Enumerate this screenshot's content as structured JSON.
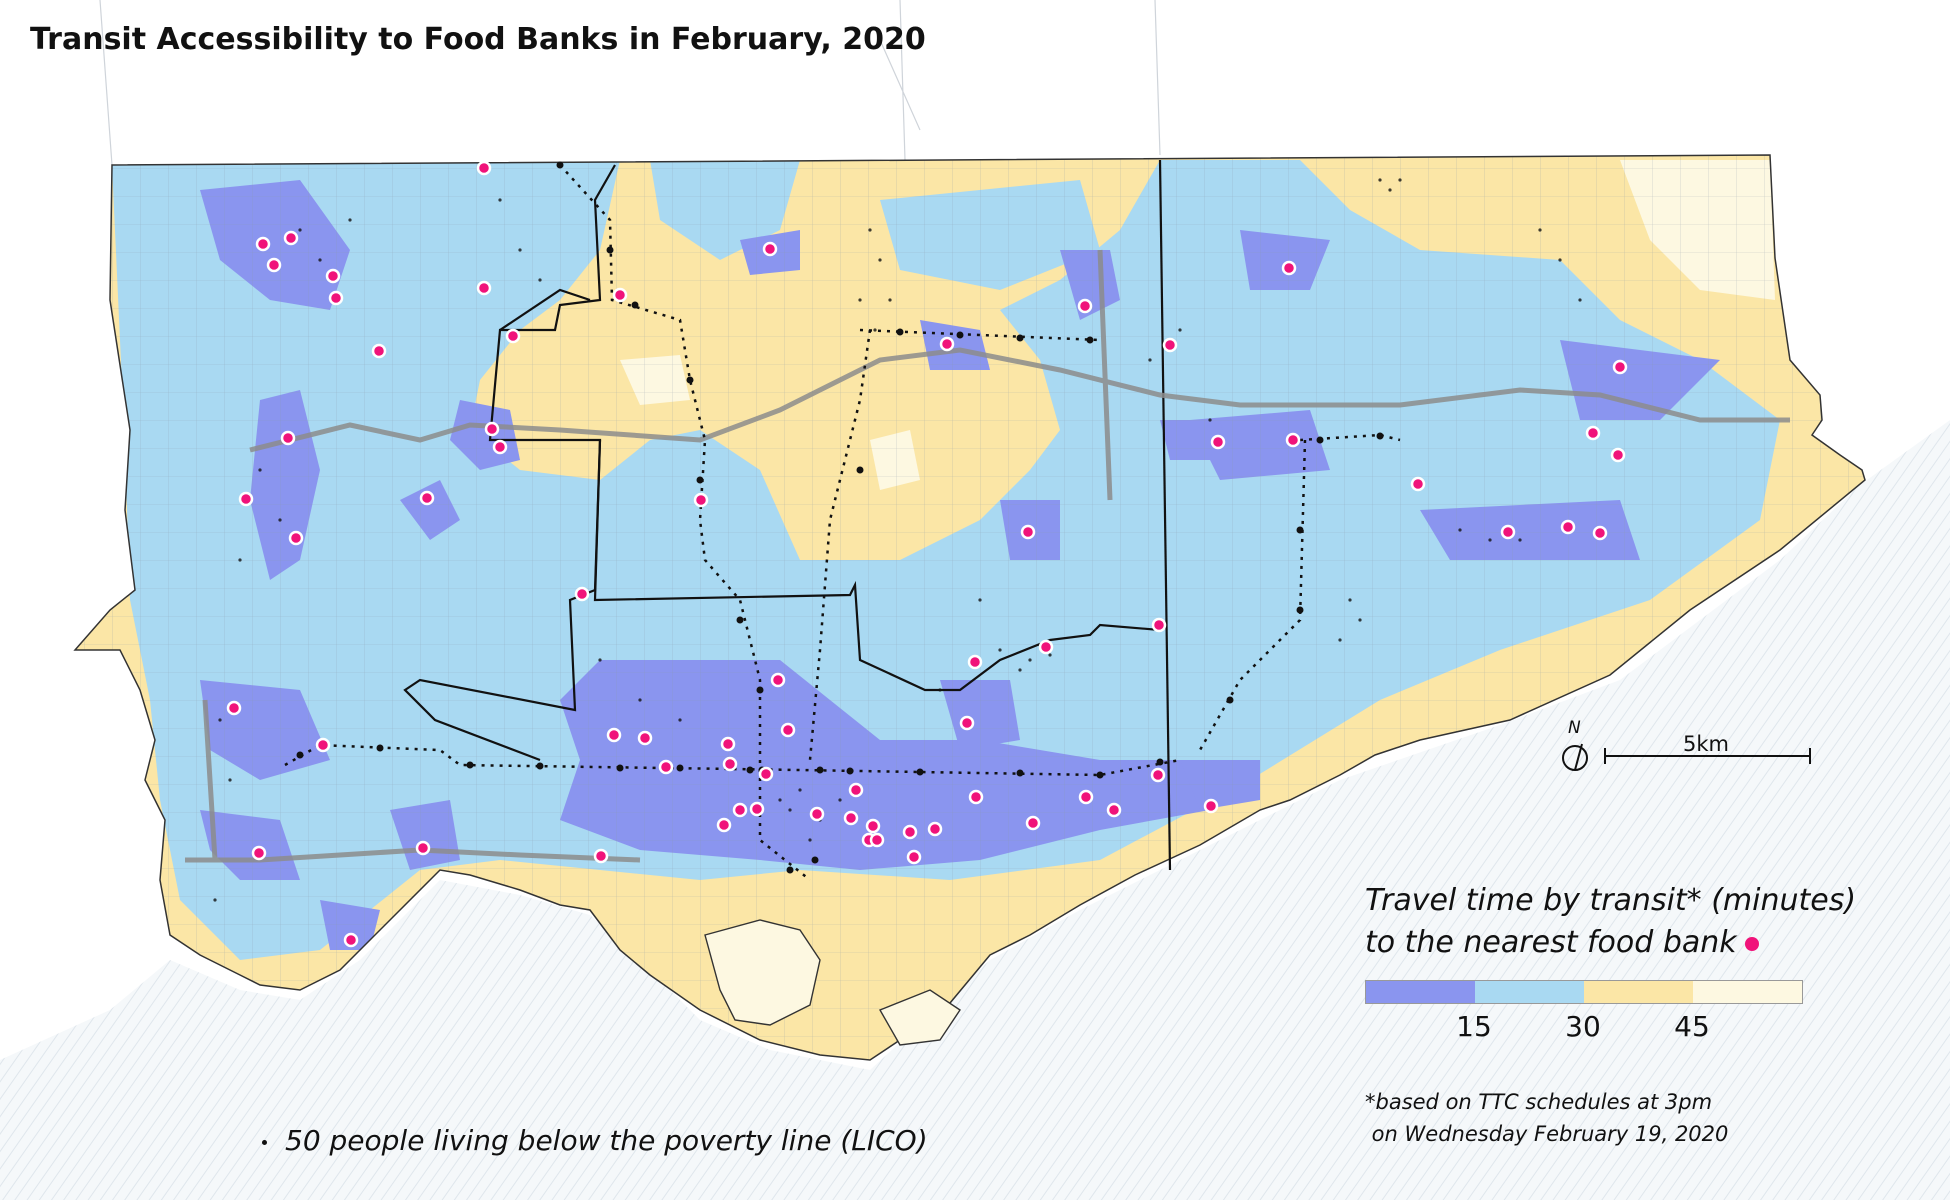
{
  "title": "Transit Accessibility to Food Banks in February, 2020",
  "legend": {
    "title_line1": "Travel time by transit* (minutes)",
    "title_line2": "to the nearest food bank",
    "ticks": [
      "15",
      "30",
      "45"
    ],
    "classes": [
      {
        "range": "0-15",
        "color": "#8a95ef"
      },
      {
        "range": "15-30",
        "color": "#a9d9f2"
      },
      {
        "range": "30-45",
        "color": "#fbe6a6"
      },
      {
        "range": "45+",
        "color": "#fdf8e1"
      }
    ],
    "food_bank_color": "#f0137a"
  },
  "footnote_line1": "*based on TTC schedules at 3pm",
  "footnote_line2": " on Wednesday February 19, 2020",
  "poverty_note": "50 people living below the poverty line (LICO)",
  "scale": {
    "label": "5km"
  },
  "north": {
    "label": "N"
  },
  "icons": [
    "north-arrow-icon",
    "scale-bar-icon"
  ]
}
